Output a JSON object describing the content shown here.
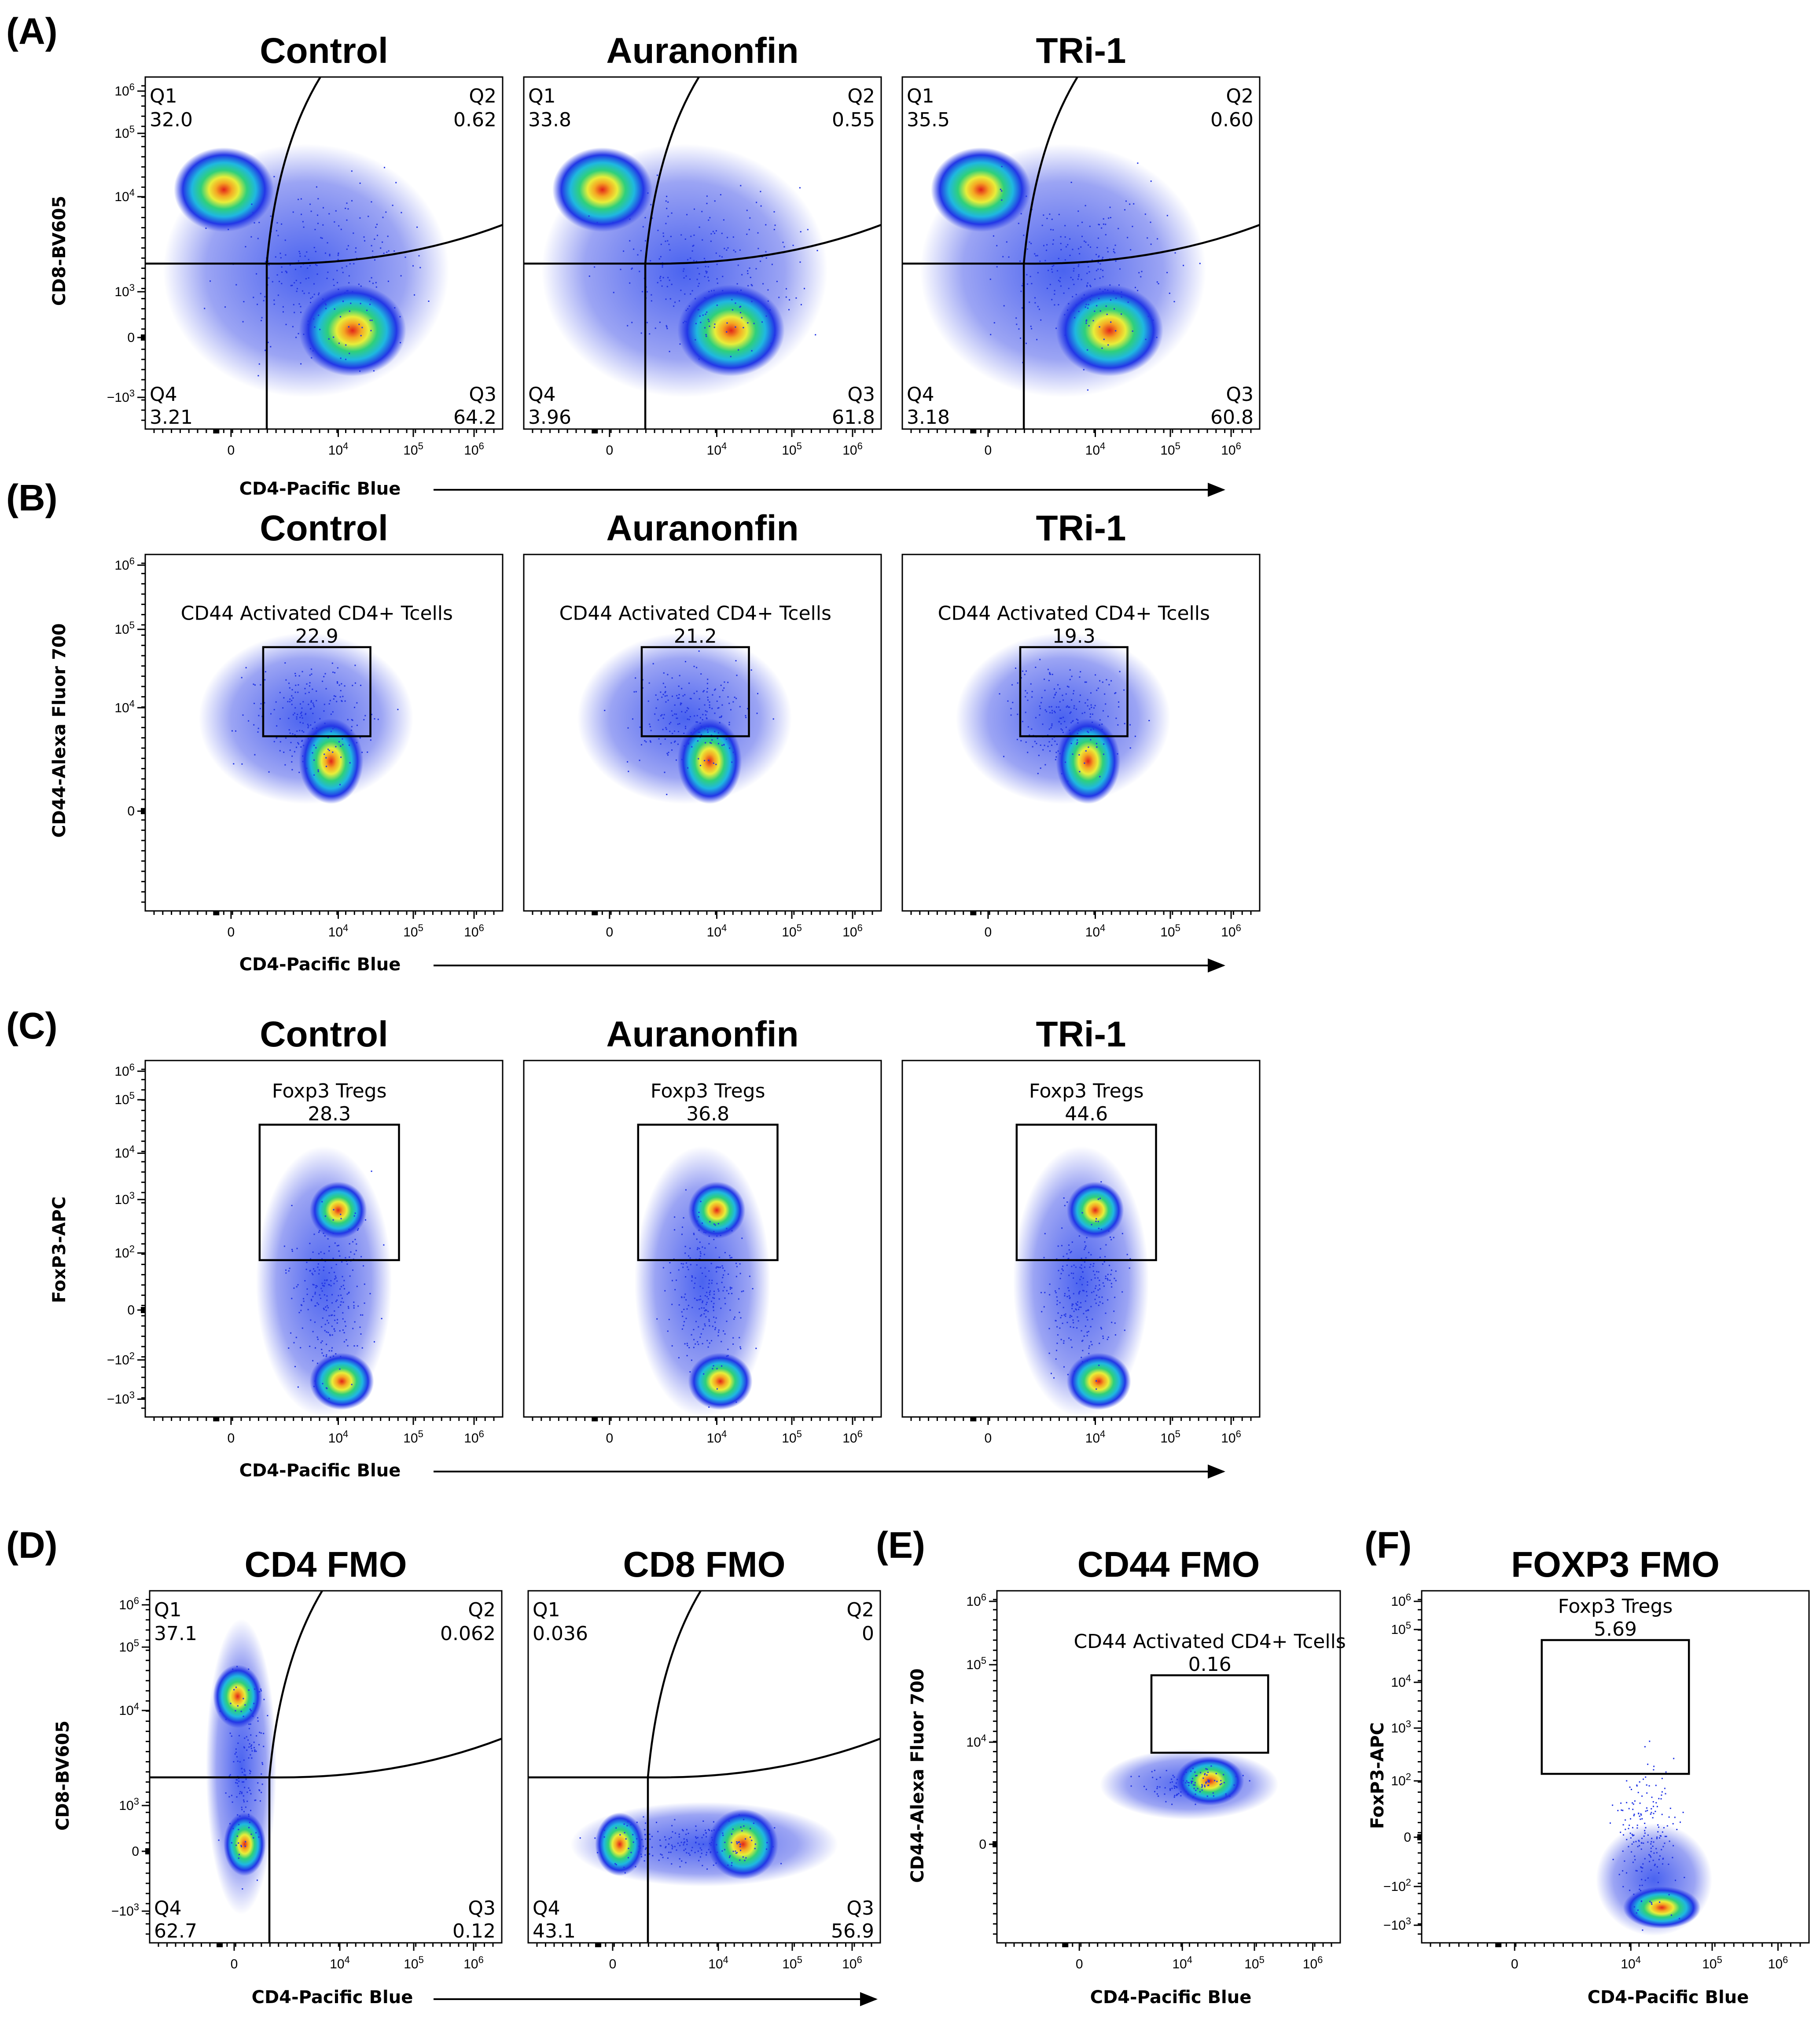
{
  "figure": {
    "panel_letters": [
      "(A)",
      "(B)",
      "(C)",
      "(D)",
      "(E)",
      "(F)"
    ],
    "colors": {
      "density_high": "#e2231a",
      "density_mid": "#2fd07a",
      "density_low": "#2236e6",
      "gate": "#000000"
    }
  },
  "axes": {
    "x_label": "CD4-Pacific Blue",
    "y_label_cd8": "CD8-BV605",
    "y_label_cd44": "CD44-Alexa Fluor 700",
    "y_label_foxp3": "FoxP3-APC",
    "x_ticks": [
      "0",
      "10^4",
      "10^5",
      "10^6"
    ],
    "y_ticks_cd8": [
      "10^6",
      "10^5",
      "10^4",
      "10^3",
      "0",
      "-10^3"
    ],
    "y_ticks_cd44": [
      "10^6",
      "10^5",
      "10^4",
      "0"
    ],
    "y_ticks_foxp3": [
      "10^6",
      "10^5",
      "10^4",
      "10^3",
      "10^2",
      "0",
      "-10^2",
      "-10^3"
    ]
  },
  "panels": {
    "A": {
      "plots": [
        {
          "title": "Control",
          "q1_label": "Q1",
          "q1": "32.0",
          "q2_label": "Q2",
          "q2": "0.62",
          "q3_label": "Q3",
          "q3": "64.2",
          "q4_label": "Q4",
          "q4": "3.21"
        },
        {
          "title": "Auranonfin",
          "q1_label": "Q1",
          "q1": "33.8",
          "q2_label": "Q2",
          "q2": "0.55",
          "q3_label": "Q3",
          "q3": "61.8",
          "q4_label": "Q4",
          "q4": "3.96"
        },
        {
          "title": "TRi-1",
          "q1_label": "Q1",
          "q1": "35.5",
          "q2_label": "Q2",
          "q2": "0.60",
          "q3_label": "Q3",
          "q3": "60.8",
          "q4_label": "Q4",
          "q4": "3.18"
        }
      ]
    },
    "B": {
      "plots": [
        {
          "title": "Control",
          "gate_name": "CD44 Activated CD4+ Tcells",
          "gate_value": "22.9"
        },
        {
          "title": "Auranonfin",
          "gate_name": "CD44 Activated CD4+ Tcells",
          "gate_value": "21.2"
        },
        {
          "title": "TRi-1",
          "gate_name": "CD44 Activated CD4+ Tcells",
          "gate_value": "19.3"
        }
      ]
    },
    "C": {
      "plots": [
        {
          "title": "Control",
          "gate_name": "Foxp3 Tregs",
          "gate_value": "28.3"
        },
        {
          "title": "Auranonfin",
          "gate_name": "Foxp3 Tregs",
          "gate_value": "36.8"
        },
        {
          "title": "TRi-1",
          "gate_name": "Foxp3 Tregs",
          "gate_value": "44.6"
        }
      ]
    },
    "D": {
      "plots": [
        {
          "title": "CD4 FMO",
          "q1_label": "Q1",
          "q1": "37.1",
          "q2_label": "Q2",
          "q2": "0.062",
          "q3_label": "Q3",
          "q3": "0.12",
          "q4_label": "Q4",
          "q4": "62.7"
        },
        {
          "title": "CD8 FMO",
          "q1_label": "Q1",
          "q1": "0.036",
          "q2_label": "Q2",
          "q2": "0",
          "q3_label": "Q3",
          "q3": "56.9",
          "q4_label": "Q4",
          "q4": "43.1"
        }
      ]
    },
    "E": {
      "title": "CD44 FMO",
      "gate_name": "CD44 Activated CD4+ Tcells",
      "gate_value": "0.16"
    },
    "F": {
      "title": "FOXP3 FMO",
      "gate_name": "Foxp3 Tregs",
      "gate_value": "5.69"
    }
  }
}
